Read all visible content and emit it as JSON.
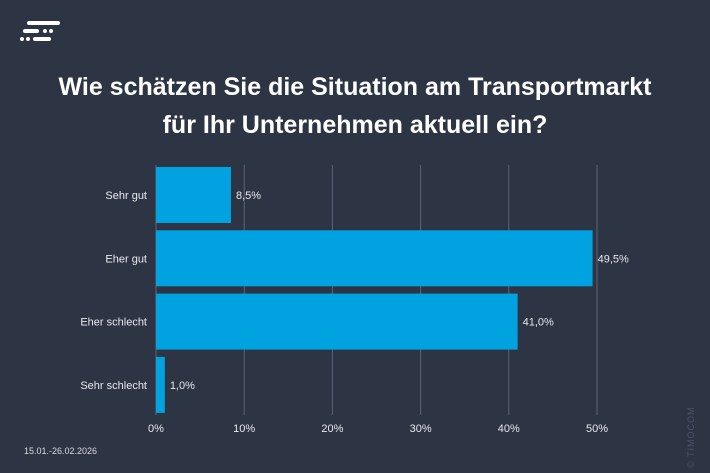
{
  "title_line1": "Wie schätzen Sie die Situation am Transportmarkt",
  "title_line2": "für Ihr Unternehmen aktuell ein?",
  "date_range": "15.01.-26.02.2026",
  "copyright": "© TIMOCOM",
  "colors": {
    "background": "#2d3545",
    "bar": "#00a3e0",
    "grid": "#5a6375"
  },
  "chart_data": {
    "type": "bar",
    "orientation": "horizontal",
    "categories": [
      "Sehr gut",
      "Eher gut",
      "Eher schlecht",
      "Sehr schlecht"
    ],
    "values": [
      8.5,
      49.5,
      41.0,
      1.0
    ],
    "data_labels": [
      "8,5%",
      "49,5%",
      "41,0%",
      "1,0%"
    ],
    "xlim": [
      0,
      50
    ],
    "xticks": [
      "0%",
      "10%",
      "20%",
      "30%",
      "40%",
      "50%"
    ],
    "grid": "vertical",
    "xlabel": "",
    "ylabel": ""
  }
}
